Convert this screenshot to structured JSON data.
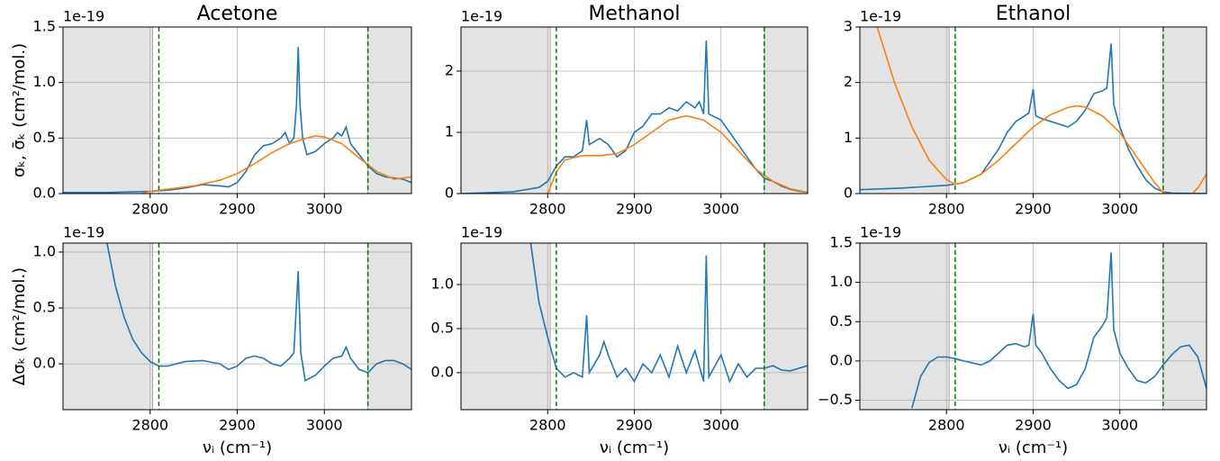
{
  "chart_data": [
    {
      "type": "line",
      "title": "Acetone",
      "offset_label": "1e-19",
      "ylabel": "σₖ, σ̄ₖ (cm²/mol.)",
      "xlim": [
        2700,
        3100
      ],
      "xticks": [
        2800,
        2900,
        3000
      ],
      "ylim": [
        0,
        1.5
      ],
      "yticks": [
        {
          "value": 0,
          "label": "0.0"
        },
        {
          "value": 0.5,
          "label": "0.5"
        },
        {
          "value": 1,
          "label": "1.0"
        },
        {
          "value": 1.5,
          "label": "1.5"
        }
      ],
      "grid": true,
      "shaded_spans": [
        [
          2700,
          2803
        ],
        [
          3050,
          3100
        ]
      ],
      "shade_color": "#e3e3e3",
      "vlines": [
        2810,
        3050
      ],
      "vline_color": "green",
      "series": [
        {
          "color": "#1f77b4",
          "x": [
            2700,
            2750,
            2800,
            2820,
            2840,
            2860,
            2880,
            2890,
            2900,
            2910,
            2920,
            2930,
            2940,
            2950,
            2955,
            2960,
            2965,
            2968,
            2970,
            2972,
            2975,
            2980,
            2990,
            3000,
            3010,
            3015,
            3020,
            3025,
            3030,
            3040,
            3050,
            3060,
            3070,
            3080,
            3090,
            3100
          ],
          "values": [
            0.01,
            0.01,
            0.02,
            0.03,
            0.05,
            0.08,
            0.07,
            0.06,
            0.1,
            0.2,
            0.35,
            0.43,
            0.45,
            0.5,
            0.55,
            0.45,
            0.5,
            0.8,
            1.32,
            0.8,
            0.5,
            0.35,
            0.38,
            0.45,
            0.5,
            0.55,
            0.52,
            0.6,
            0.45,
            0.35,
            0.25,
            0.18,
            0.15,
            0.14,
            0.13,
            0.1
          ]
        },
        {
          "color": "#ff7f0e",
          "x": [
            2790,
            2800,
            2820,
            2850,
            2880,
            2900,
            2920,
            2940,
            2960,
            2980,
            2990,
            3000,
            3020,
            3040,
            3060,
            3080,
            3100
          ],
          "values": [
            0,
            0.02,
            0.04,
            0.07,
            0.12,
            0.18,
            0.27,
            0.37,
            0.45,
            0.5,
            0.52,
            0.51,
            0.45,
            0.32,
            0.2,
            0.13,
            0.15
          ]
        }
      ]
    },
    {
      "type": "line",
      "title": "Methanol",
      "offset_label": "1e-19",
      "xlim": [
        2700,
        3100
      ],
      "xticks": [
        2800,
        2900,
        3000
      ],
      "ylim": [
        0,
        2.72
      ],
      "yticks": [
        0,
        1,
        2
      ],
      "grid": true,
      "shaded_spans": [
        [
          2700,
          2803
        ],
        [
          3050,
          3100
        ]
      ],
      "shade_color": "#e3e3e3",
      "vlines": [
        2810,
        3050
      ],
      "vline_color": "green",
      "series": [
        {
          "color": "#1f77b4",
          "x": [
            2700,
            2760,
            2790,
            2800,
            2810,
            2820,
            2830,
            2840,
            2845,
            2848,
            2860,
            2870,
            2880,
            2890,
            2900,
            2910,
            2920,
            2930,
            2940,
            2950,
            2960,
            2970,
            2975,
            2980,
            2983,
            2986,
            3000,
            3010,
            3020,
            3030,
            3040,
            3050,
            3060,
            3070,
            3080,
            3090,
            3100
          ],
          "values": [
            0,
            0.03,
            0.1,
            0.2,
            0.45,
            0.6,
            0.6,
            0.7,
            1.2,
            0.8,
            0.9,
            0.8,
            0.6,
            0.7,
            1.0,
            1.1,
            1.3,
            1.3,
            1.4,
            1.35,
            1.5,
            1.4,
            1.5,
            1.3,
            2.5,
            1.3,
            1.2,
            1.0,
            0.8,
            0.6,
            0.4,
            0.25,
            0.2,
            0.12,
            0.07,
            0.04,
            0.02
          ]
        },
        {
          "color": "#ff7f0e",
          "x": [
            2800,
            2810,
            2820,
            2840,
            2860,
            2880,
            2900,
            2920,
            2940,
            2960,
            2980,
            3000,
            3020,
            3040,
            3060,
            3080,
            3100
          ],
          "values": [
            0,
            0.35,
            0.55,
            0.62,
            0.62,
            0.65,
            0.8,
            1.0,
            1.2,
            1.27,
            1.2,
            1.0,
            0.7,
            0.4,
            0.2,
            0.08,
            0.02
          ]
        }
      ]
    },
    {
      "type": "line",
      "title": "Ethanol",
      "offset_label": "1e-19",
      "xlim": [
        2700,
        3100
      ],
      "xticks": [
        2800,
        2900,
        3000
      ],
      "ylim": [
        0,
        3
      ],
      "yticks": [
        0,
        1,
        2,
        3
      ],
      "grid": true,
      "shaded_spans": [
        [
          2700,
          2803
        ],
        [
          3050,
          3100
        ]
      ],
      "shade_color": "#e3e3e3",
      "vlines": [
        2810,
        3050
      ],
      "vline_color": "green",
      "series": [
        {
          "color": "#1f77b4",
          "x": [
            2700,
            2750,
            2800,
            2810,
            2820,
            2840,
            2860,
            2870,
            2880,
            2890,
            2895,
            2900,
            2903,
            2910,
            2920,
            2930,
            2940,
            2950,
            2960,
            2970,
            2980,
            2985,
            2990,
            2993,
            3000,
            3010,
            3020,
            3030,
            3040,
            3050,
            3060,
            3100
          ],
          "values": [
            0.07,
            0.1,
            0.15,
            0.17,
            0.2,
            0.35,
            0.8,
            1.1,
            1.3,
            1.4,
            1.45,
            1.88,
            1.4,
            1.35,
            1.3,
            1.25,
            1.2,
            1.3,
            1.5,
            1.8,
            1.85,
            1.9,
            2.7,
            1.6,
            1.2,
            0.8,
            0.5,
            0.25,
            0.1,
            0.03,
            0.01,
            0
          ]
        },
        {
          "color": "#ff7f0e",
          "x": [
            2720,
            2740,
            2760,
            2780,
            2800,
            2810,
            2820,
            2840,
            2860,
            2880,
            2900,
            2920,
            2940,
            2950,
            2960,
            2980,
            3000,
            3020,
            3040,
            3050,
            3060,
            3080,
            3090,
            3100
          ],
          "values": [
            3.0,
            2.0,
            1.2,
            0.6,
            0.25,
            0.17,
            0.2,
            0.35,
            0.6,
            0.9,
            1.2,
            1.42,
            1.55,
            1.58,
            1.56,
            1.4,
            1.1,
            0.65,
            0.2,
            0.02,
            -0.05,
            -0.05,
            0.1,
            0.35
          ]
        }
      ]
    },
    {
      "type": "line",
      "offset_label": "1e-19",
      "ylabel": "Δσₖ (cm²/mol.)",
      "xlabel": "νᵢ  (cm⁻¹)",
      "xlim": [
        2700,
        3100
      ],
      "xticks": [
        2800,
        2900,
        3000
      ],
      "ylim": [
        -0.41,
        1.08
      ],
      "yticks": [
        {
          "value": 0,
          "label": "0.0"
        },
        {
          "value": 0.5,
          "label": "0.5"
        },
        {
          "value": 1,
          "label": "1.0"
        }
      ],
      "grid": true,
      "shaded_spans": [
        [
          2700,
          2803
        ],
        [
          3050,
          3100
        ]
      ],
      "shade_color": "#e3e3e3",
      "vlines": [
        2810,
        3050
      ],
      "vline_color": "green",
      "series": [
        {
          "color": "#1f77b4",
          "x": [
            2750,
            2760,
            2770,
            2780,
            2790,
            2800,
            2810,
            2820,
            2840,
            2860,
            2880,
            2890,
            2900,
            2910,
            2920,
            2930,
            2940,
            2950,
            2960,
            2965,
            2970,
            2973,
            2978,
            2990,
            3000,
            3010,
            3020,
            3025,
            3030,
            3040,
            3050,
            3060,
            3070,
            3080,
            3090,
            3100
          ],
          "values": [
            1.1,
            0.7,
            0.42,
            0.22,
            0.1,
            0.02,
            -0.02,
            -0.02,
            0.02,
            0.03,
            0,
            -0.05,
            -0.02,
            0.05,
            0.07,
            0.05,
            0,
            -0.02,
            0.05,
            0.1,
            0.83,
            0.1,
            -0.15,
            -0.1,
            -0.02,
            0.05,
            0.07,
            0.15,
            0.05,
            -0.05,
            -0.08,
            0,
            0.03,
            0.03,
            0,
            -0.05
          ]
        }
      ]
    },
    {
      "type": "line",
      "offset_label": "1e-19",
      "xlabel": "νᵢ  (cm⁻¹)",
      "xlim": [
        2700,
        3100
      ],
      "xticks": [
        2800,
        2900,
        3000
      ],
      "ylim": [
        -0.42,
        1.47
      ],
      "yticks": [
        {
          "value": 0,
          "label": "0.0"
        },
        {
          "value": 0.5,
          "label": "0.5"
        },
        {
          "value": 1,
          "label": "1.0"
        }
      ],
      "grid": true,
      "shaded_spans": [
        [
          2700,
          2803
        ],
        [
          3050,
          3100
        ]
      ],
      "shade_color": "#e3e3e3",
      "vlines": [
        2810,
        3050
      ],
      "vline_color": "green",
      "series": [
        {
          "color": "#1f77b4",
          "x": [
            2780,
            2790,
            2800,
            2810,
            2820,
            2830,
            2840,
            2845,
            2848,
            2860,
            2865,
            2870,
            2880,
            2890,
            2900,
            2910,
            2920,
            2930,
            2940,
            2950,
            2960,
            2970,
            2980,
            2983,
            2986,
            3000,
            3010,
            3020,
            3030,
            3040,
            3050,
            3060,
            3070,
            3080,
            3090,
            3100
          ],
          "values": [
            1.5,
            0.8,
            0.4,
            0.05,
            -0.05,
            0,
            -0.05,
            0.65,
            0,
            0.2,
            0.35,
            0.2,
            -0.05,
            0.05,
            -0.1,
            0.1,
            0,
            0.2,
            -0.05,
            0.3,
            0,
            0.25,
            -0.1,
            1.33,
            -0.05,
            0.2,
            -0.1,
            0.1,
            -0.05,
            0.05,
            0.05,
            0.08,
            0.03,
            0.02,
            0.05,
            0.08
          ]
        }
      ]
    },
    {
      "type": "line",
      "offset_label": "1e-19",
      "xlabel": "νᵢ (cm⁻¹)",
      "xlim": [
        2700,
        3100
      ],
      "xticks": [
        2800,
        2900,
        3000
      ],
      "ylim": [
        -0.62,
        1.5
      ],
      "yticks": [
        {
          "value": -0.5,
          "label": "−0.5"
        },
        {
          "value": 0,
          "label": "0.0"
        },
        {
          "value": 0.5,
          "label": "0.5"
        },
        {
          "value": 1,
          "label": "1.0"
        },
        {
          "value": 1.5,
          "label": "1.5"
        }
      ],
      "grid": true,
      "shaded_spans": [
        [
          2700,
          2803
        ],
        [
          3050,
          3100
        ]
      ],
      "shade_color": "#e3e3e3",
      "vlines": [
        2810,
        3050
      ],
      "vline_color": "green",
      "series": [
        {
          "color": "#1f77b4",
          "x": [
            2760,
            2770,
            2780,
            2790,
            2800,
            2810,
            2820,
            2840,
            2850,
            2860,
            2870,
            2880,
            2890,
            2895,
            2900,
            2903,
            2910,
            2920,
            2930,
            2940,
            2950,
            2960,
            2970,
            2980,
            2985,
            2990,
            2993,
            3000,
            3010,
            3020,
            3030,
            3040,
            3050,
            3060,
            3070,
            3080,
            3090,
            3100
          ],
          "values": [
            -0.6,
            -0.2,
            -0.02,
            0.05,
            0.05,
            0.03,
            0,
            -0.05,
            0,
            0.1,
            0.2,
            0.22,
            0.18,
            0.2,
            0.6,
            0.2,
            0.1,
            -0.1,
            -0.25,
            -0.35,
            -0.3,
            -0.1,
            0.3,
            0.45,
            0.55,
            1.38,
            0.4,
            0.1,
            -0.1,
            -0.25,
            -0.28,
            -0.2,
            -0.05,
            0.08,
            0.18,
            0.2,
            0.05,
            -0.35
          ]
        }
      ]
    }
  ]
}
